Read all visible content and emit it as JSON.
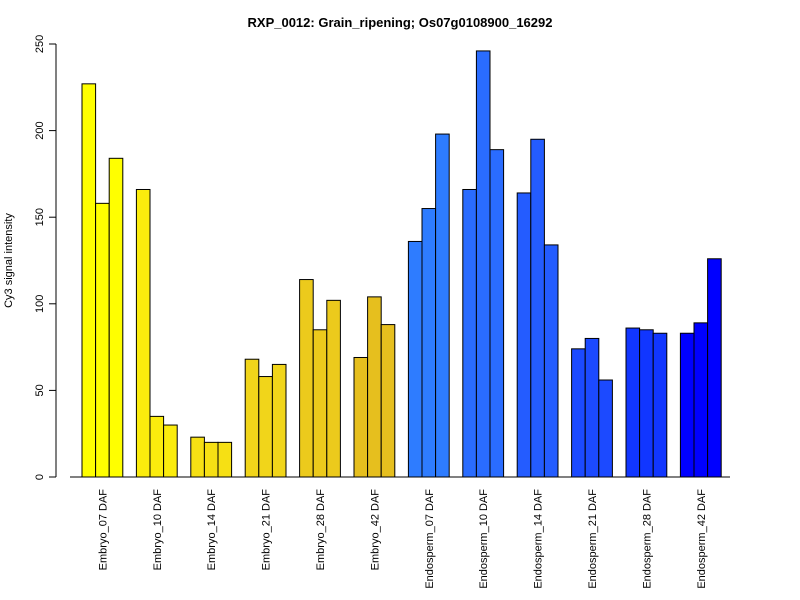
{
  "chart_data": {
    "type": "bar",
    "title": "RXP_0012: Grain_ripening; Os07g0108900_16292",
    "ylabel": "Cy3 signal intensity",
    "xlabel": "",
    "ylim": [
      0,
      250
    ],
    "yticks": [
      0,
      50,
      100,
      150,
      200,
      250
    ],
    "grid": false,
    "categories": [
      "Embryo_07 DAF",
      "Embryo_10 DAF",
      "Embryo_14 DAF",
      "Embryo_21 DAF",
      "Embryo_28 DAF",
      "Embryo_42 DAF",
      "Endosperm_07 DAF",
      "Endosperm_10 DAF",
      "Endosperm_14 DAF",
      "Endosperm_21 DAF",
      "Endosperm_28 DAF",
      "Endosperm_42 DAF"
    ],
    "replicates": [
      [
        227,
        158,
        184
      ],
      [
        166,
        35,
        30
      ],
      [
        23,
        20,
        20
      ],
      [
        68,
        58,
        65
      ],
      [
        114,
        85,
        102
      ],
      [
        69,
        104,
        88
      ],
      [
        136,
        155,
        198
      ],
      [
        166,
        246,
        189
      ],
      [
        164,
        195,
        134
      ],
      [
        74,
        80,
        56
      ],
      [
        86,
        85,
        83
      ],
      [
        83,
        89,
        126
      ]
    ],
    "colors": [
      "#ffff00",
      "#fbec0d",
      "#f6e014",
      "#f1d51a",
      "#ecca1c",
      "#e6bf1e",
      "#2e7cff",
      "#2a6cff",
      "#245cff",
      "#1c4aff",
      "#1136ff",
      "#0000ff"
    ]
  }
}
